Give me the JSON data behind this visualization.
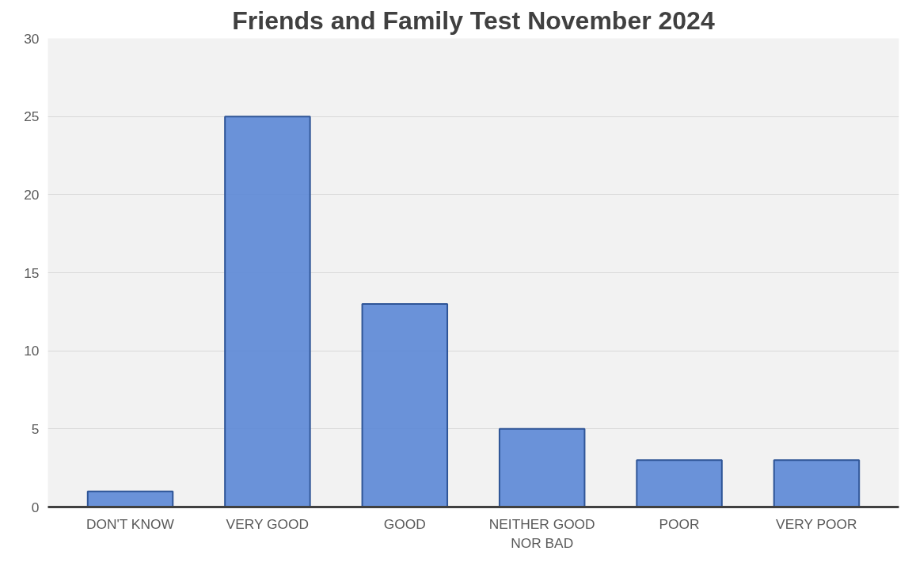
{
  "chart_data": {
    "type": "bar",
    "title": "Friends and Family Test November 2024",
    "categories": [
      "DON'T KNOW",
      "VERY GOOD",
      "GOOD",
      "NEITHER GOOD\nNOR BAD",
      "POOR",
      "VERY POOR"
    ],
    "values": [
      1,
      25,
      13,
      5,
      3,
      3
    ],
    "color": "#5b87d6",
    "ylim": [
      0,
      30
    ],
    "yticks": [
      0,
      5,
      10,
      15,
      20,
      25,
      30
    ],
    "grid": "y"
  }
}
